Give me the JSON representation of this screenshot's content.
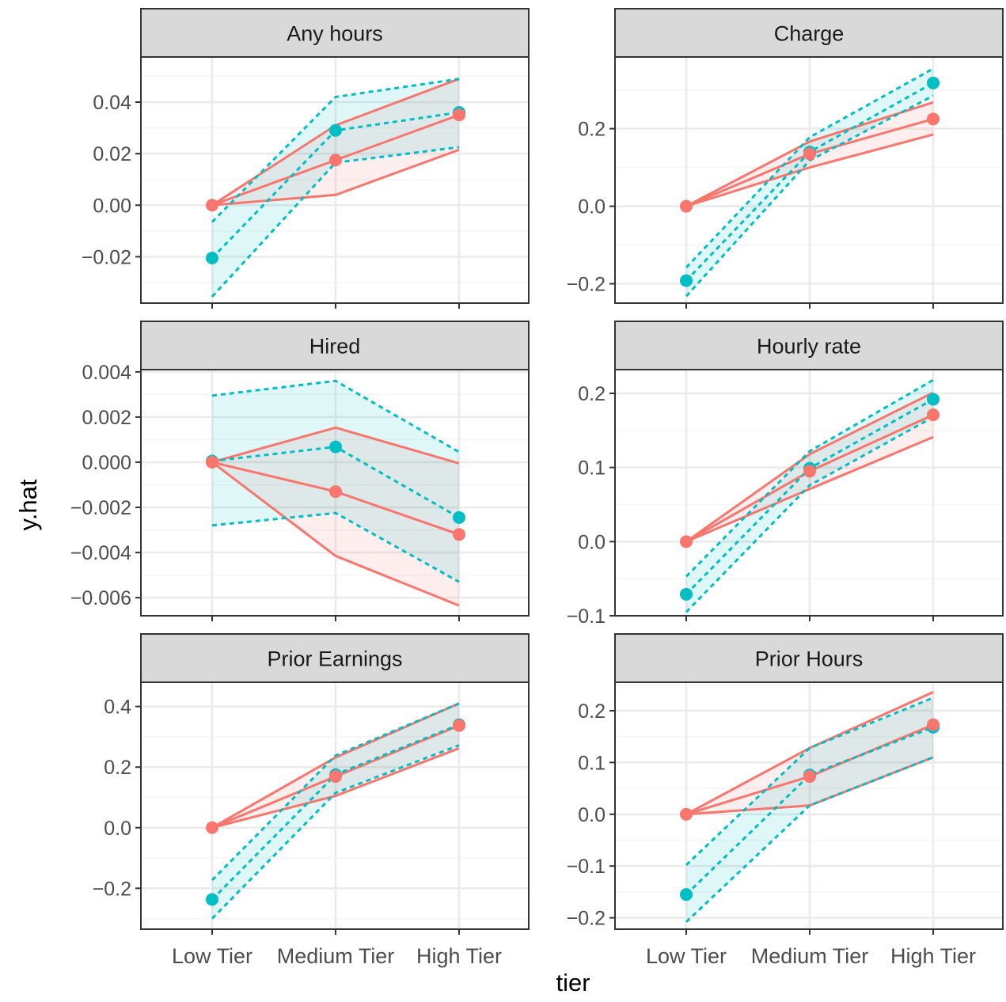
{
  "x_axis_label": "tier",
  "y_axis_label": "y.hat",
  "colors": {
    "red": "#F8766D",
    "teal": "#00BFC4",
    "strip_bg": "#D9D9D9",
    "panel_border": "#333333",
    "grid_major": "#EBEBEB",
    "grid_minor": "#F5F5F5",
    "tick_text": "#4D4D4D"
  },
  "chart_data": [
    {
      "type": "line",
      "title": "Any hours",
      "categories": [
        "Low Tier",
        "Medium Tier",
        "High Tier"
      ],
      "xlabel": "tier",
      "ylabel": "y.hat",
      "ylim": [
        -0.038,
        0.0575
      ],
      "yticks": [
        -0.02,
        0.0,
        0.02,
        0.04
      ],
      "ytick_labels": [
        "−0.02",
        "0.00",
        "0.02",
        "0.04"
      ],
      "grid": true,
      "series": [
        {
          "color": "red",
          "style": "solid",
          "values": [
            0.0,
            0.0175,
            0.035
          ],
          "lower": [
            0.0,
            0.004,
            0.0215
          ],
          "upper": [
            0.0,
            0.031,
            0.049
          ]
        },
        {
          "color": "teal",
          "style": "dashed",
          "values": [
            -0.0205,
            0.029,
            0.036
          ],
          "lower": [
            -0.0355,
            0.0165,
            0.0225
          ],
          "upper": [
            -0.0065,
            0.042,
            0.049
          ]
        }
      ]
    },
    {
      "type": "line",
      "title": "Charge",
      "categories": [
        "Low Tier",
        "Medium Tier",
        "High Tier"
      ],
      "xlabel": "tier",
      "ylabel": "y.hat",
      "ylim": [
        -0.25,
        0.385
      ],
      "yticks": [
        -0.2,
        0.0,
        0.2
      ],
      "ytick_labels": [
        "−0.2",
        "0.0",
        "0.2"
      ],
      "grid": true,
      "series": [
        {
          "color": "red",
          "style": "solid",
          "values": [
            0.0,
            0.135,
            0.225
          ],
          "lower": [
            0.0,
            0.1,
            0.185
          ],
          "upper": [
            0.0,
            0.167,
            0.268
          ]
        },
        {
          "color": "teal",
          "style": "dashed",
          "values": [
            -0.192,
            0.14,
            0.318
          ],
          "lower": [
            -0.232,
            0.118,
            0.285
          ],
          "upper": [
            -0.158,
            0.178,
            0.355
          ]
        }
      ]
    },
    {
      "type": "line",
      "title": "Hired",
      "categories": [
        "Low Tier",
        "Medium Tier",
        "High Tier"
      ],
      "xlabel": "tier",
      "ylabel": "y.hat",
      "ylim": [
        -0.0068,
        0.0041
      ],
      "yticks": [
        -0.006,
        -0.004,
        -0.002,
        0.0,
        0.002,
        0.004
      ],
      "ytick_labels": [
        "−0.006",
        "−0.004",
        "−0.002",
        "0.000",
        "0.002",
        "0.004"
      ],
      "grid": true,
      "series": [
        {
          "color": "red",
          "style": "solid",
          "values": [
            0.0,
            -0.0013,
            -0.0032
          ],
          "lower": [
            0.0,
            -0.00415,
            -0.00635
          ],
          "upper": [
            0.0,
            0.00153,
            -5e-05
          ]
        },
        {
          "color": "teal",
          "style": "dashed",
          "values": [
            5e-05,
            0.00068,
            -0.00245
          ],
          "lower": [
            -0.0028,
            -0.00225,
            -0.0053
          ],
          "upper": [
            0.00295,
            0.0036,
            0.00045
          ]
        }
      ]
    },
    {
      "type": "line",
      "title": "Hourly rate",
      "categories": [
        "Low Tier",
        "Medium Tier",
        "High Tier"
      ],
      "xlabel": "tier",
      "ylabel": "y.hat",
      "ylim": [
        -0.1,
        0.232
      ],
      "yticks": [
        -0.1,
        0.0,
        0.1,
        0.2
      ],
      "ytick_labels": [
        "−0.1",
        "0.0",
        "0.1",
        "0.2"
      ],
      "grid": true,
      "series": [
        {
          "color": "red",
          "style": "solid",
          "values": [
            0.0,
            0.095,
            0.171
          ],
          "lower": [
            0.0,
            0.071,
            0.141
          ],
          "upper": [
            0.0,
            0.118,
            0.201
          ]
        },
        {
          "color": "teal",
          "style": "dashed",
          "values": [
            -0.071,
            0.099,
            0.192
          ],
          "lower": [
            -0.095,
            0.076,
            0.168
          ],
          "upper": [
            -0.047,
            0.122,
            0.218
          ]
        }
      ]
    },
    {
      "type": "line",
      "title": "Prior Earnings",
      "categories": [
        "Low Tier",
        "Medium Tier",
        "High Tier"
      ],
      "xlabel": "tier",
      "ylabel": "y.hat",
      "ylim": [
        -0.335,
        0.48
      ],
      "yticks": [
        -0.2,
        0.0,
        0.2,
        0.4
      ],
      "ytick_labels": [
        "−0.2",
        "0.0",
        "0.2",
        "0.4"
      ],
      "grid": true,
      "series": [
        {
          "color": "red",
          "style": "solid",
          "values": [
            0.0,
            0.169,
            0.337
          ],
          "lower": [
            0.0,
            0.105,
            0.262
          ],
          "upper": [
            0.0,
            0.232,
            0.41
          ]
        },
        {
          "color": "teal",
          "style": "dashed",
          "values": [
            -0.237,
            0.175,
            0.34
          ],
          "lower": [
            -0.3,
            0.115,
            0.272
          ],
          "upper": [
            -0.173,
            0.238,
            0.41
          ]
        }
      ]
    },
    {
      "type": "line",
      "title": "Prior Hours",
      "categories": [
        "Low Tier",
        "Medium Tier",
        "High Tier"
      ],
      "xlabel": "tier",
      "ylabel": "y.hat",
      "ylim": [
        -0.222,
        0.255
      ],
      "yticks": [
        -0.2,
        -0.1,
        0.0,
        0.1,
        0.2
      ],
      "ytick_labels": [
        "−0.2",
        "−0.1",
        "0.0",
        "0.1",
        "0.2"
      ],
      "grid": true,
      "series": [
        {
          "color": "red",
          "style": "solid",
          "values": [
            0.0,
            0.073,
            0.173
          ],
          "lower": [
            0.0,
            0.017,
            0.11
          ],
          "upper": [
            0.0,
            0.128,
            0.236
          ]
        },
        {
          "color": "teal",
          "style": "dashed",
          "values": [
            -0.155,
            0.076,
            0.168
          ],
          "lower": [
            -0.208,
            0.017,
            0.11
          ],
          "upper": [
            -0.098,
            0.128,
            0.225
          ]
        }
      ]
    }
  ]
}
